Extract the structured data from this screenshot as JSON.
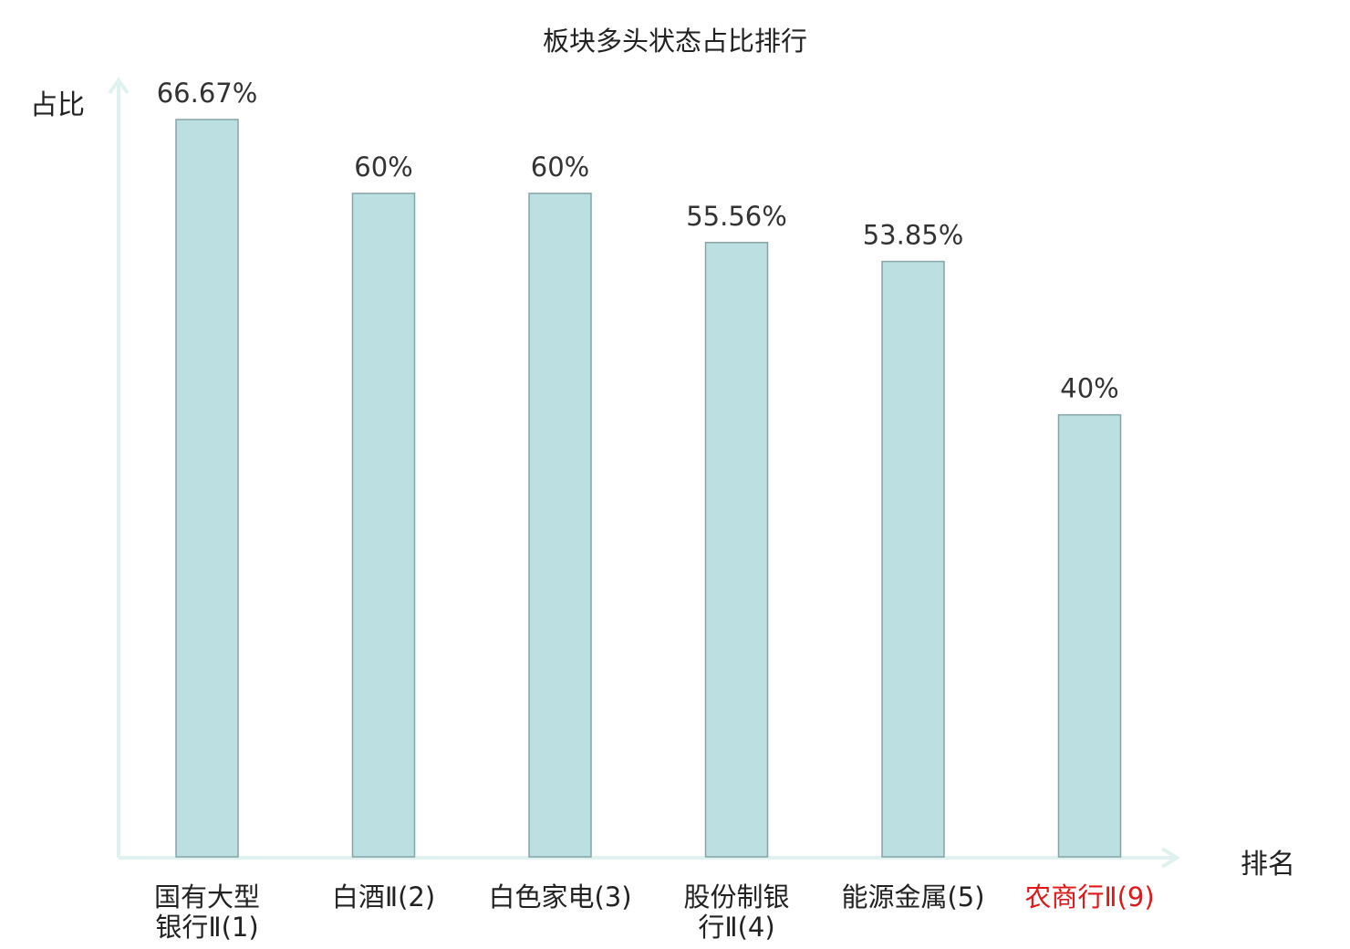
{
  "title": "板块多头状态占比排行",
  "colors": {
    "bar_fill": "#bce0e2",
    "bar_stroke": "#86a3a6",
    "axis": "#e0f2f0",
    "label_default": "#222222",
    "label_highlight": "#e01818"
  },
  "chart_data": {
    "type": "bar",
    "title": "板块多头状态占比排行",
    "xlabel": "排名",
    "ylabel": "占比",
    "ylim": [
      0,
      70
    ],
    "grid": false,
    "categories": [
      [
        "国有大型",
        "银行Ⅱ(1)"
      ],
      [
        "白酒Ⅱ(2)"
      ],
      [
        "白色家电(3)"
      ],
      [
        "股份制银",
        "行Ⅱ(4)"
      ],
      [
        "能源金属(5)"
      ],
      [
        "农商行Ⅱ(9)"
      ]
    ],
    "values": [
      66.67,
      60,
      60,
      55.56,
      53.85,
      40
    ],
    "value_labels": [
      "66.67%",
      "60%",
      "60%",
      "55.56%",
      "53.85%",
      "40%"
    ],
    "highlight": [
      false,
      false,
      false,
      false,
      false,
      true
    ]
  }
}
